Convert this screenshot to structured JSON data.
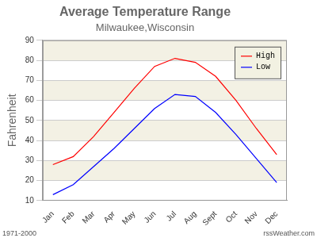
{
  "chart_data": {
    "type": "line",
    "title": "Average Temperature Range",
    "subtitle": "Milwaukee,Wisconsin",
    "y_label": "Fahrenheit",
    "annotations": [
      "1971-2000",
      "rssWeather.com"
    ],
    "categories": [
      "Jan",
      "Feb",
      "Mar",
      "Apr",
      "May",
      "Jun",
      "Jul",
      "Aug",
      "Sept",
      "Oct",
      "Nov",
      "Dec"
    ],
    "series": [
      {
        "name": "High",
        "color": "#ff0000",
        "values": [
          28,
          32,
          42,
          54,
          66,
          77,
          81,
          79,
          72,
          60,
          46,
          33
        ]
      },
      {
        "name": "Low",
        "color": "#0000ff",
        "values": [
          13,
          18,
          27,
          36,
          46,
          56,
          63,
          62,
          54,
          43,
          31,
          19
        ]
      }
    ],
    "ylim": [
      10,
      90
    ],
    "yticks": [
      10,
      20,
      30,
      40,
      50,
      60,
      70,
      80,
      90
    ],
    "grid": true,
    "legend": "upper right"
  }
}
